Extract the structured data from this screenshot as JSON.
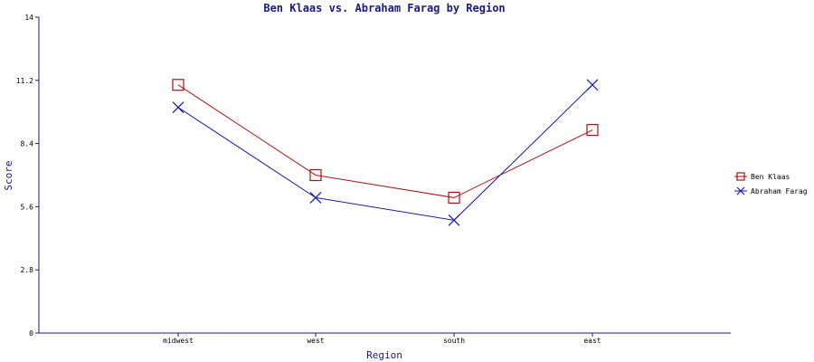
{
  "chart_data": {
    "type": "line",
    "title": "Ben Klaas vs. Abraham Farag by Region",
    "xlabel": "Region",
    "ylabel": "Score",
    "categories": [
      "midwest",
      "west",
      "south",
      "east"
    ],
    "ylim": [
      0,
      14
    ],
    "yticks": [
      "0",
      "2.8",
      "5.6",
      "8.4",
      "11.2",
      "14"
    ],
    "grid": false,
    "legend": "right",
    "series": [
      {
        "name": "Ben Klaas",
        "values": [
          11,
          7,
          6,
          9
        ],
        "color": "#aa1111",
        "marker": "square"
      },
      {
        "name": "Abraham Farag",
        "values": [
          10,
          6,
          5,
          11
        ],
        "color": "#1a1aaa",
        "marker": "x"
      }
    ]
  }
}
